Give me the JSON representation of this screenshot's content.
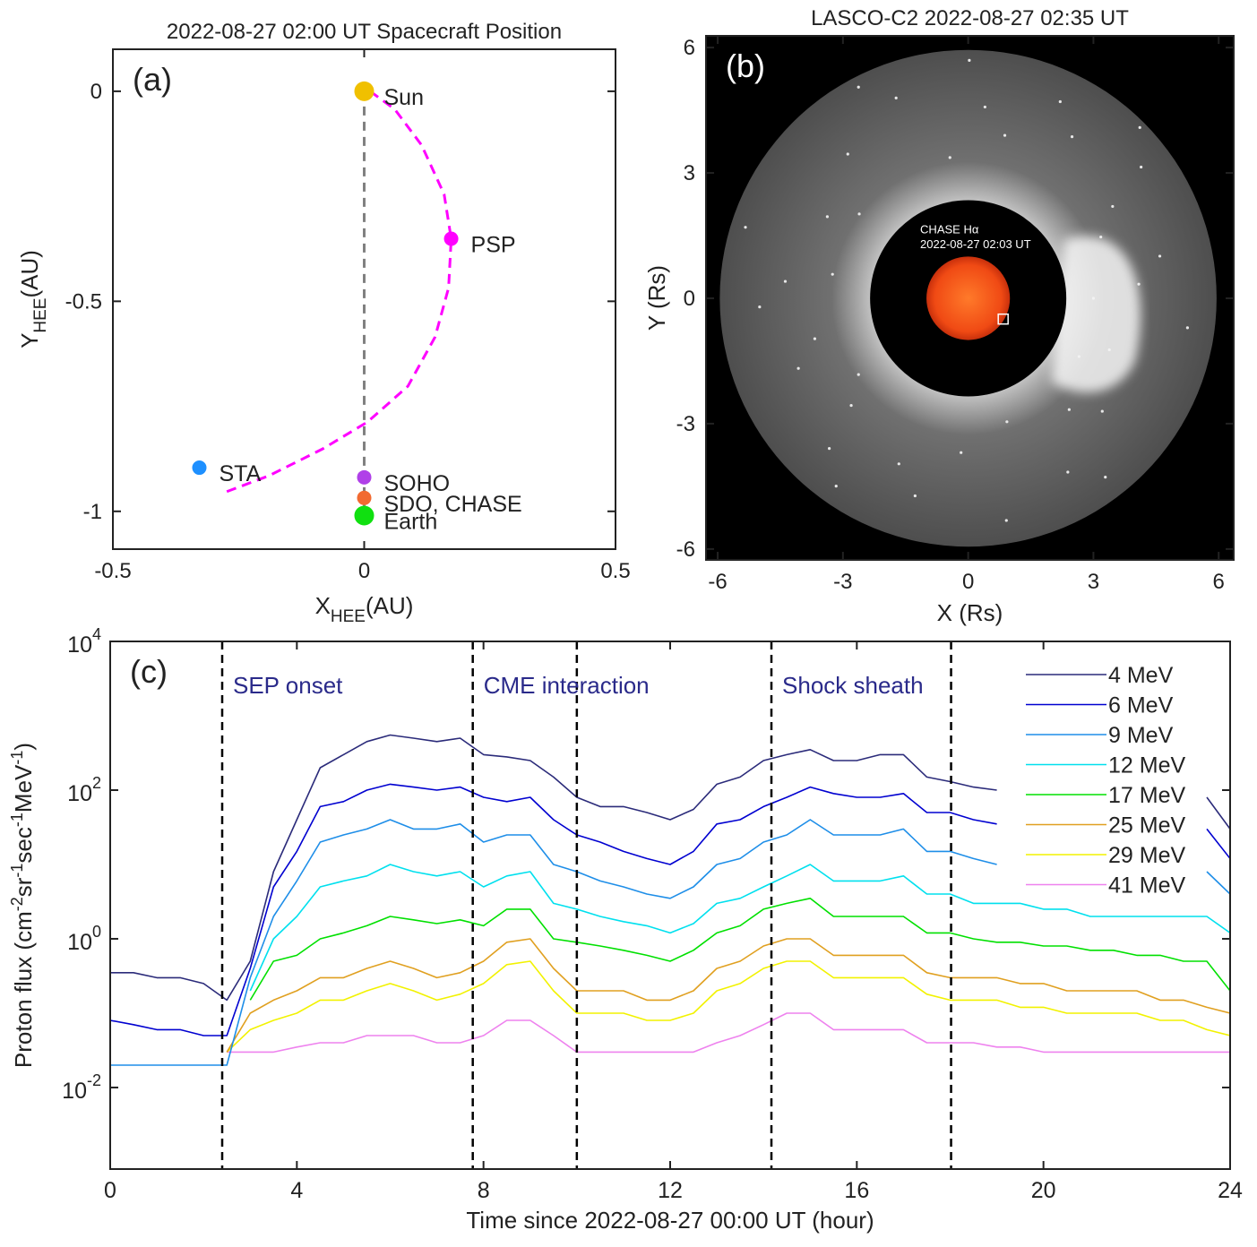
{
  "chart_data": [
    {
      "type": "scatter",
      "title": "2022-08-27 02:00 UT Spacecraft Position",
      "panel_label": "(a)",
      "xlabel": "X",
      "xlabel_sub": "HEE",
      "xlabel_unit": "(AU)",
      "ylabel": "Y",
      "ylabel_sub": "HEE",
      "ylabel_unit": "(AU)",
      "xlim": [
        -0.5,
        0.5
      ],
      "ylim": [
        -1.09,
        0.1
      ],
      "xticks": [
        -0.5,
        0,
        0.5
      ],
      "yticks": [
        -1,
        -0.5,
        0
      ],
      "reference_x": 0,
      "reference_color": "#808080",
      "trajectory": {
        "color": "#ff00ff",
        "x": [
          0.012,
          0.061,
          0.114,
          0.159,
          0.173,
          0.168,
          0.141,
          0.087,
          0.007,
          -0.082,
          -0.189,
          -0.282
        ],
        "y": [
          0,
          -0.043,
          -0.128,
          -0.245,
          -0.351,
          -0.468,
          -0.585,
          -0.702,
          -0.787,
          -0.851,
          -0.915,
          -0.957
        ]
      },
      "points": [
        {
          "name": "Sun",
          "color": "#f0c000",
          "x": 0,
          "y": 0,
          "size": 11
        },
        {
          "name": "PSP",
          "color": "#ff00ff",
          "x": 0.173,
          "y": -0.351,
          "size": 8
        },
        {
          "name": "STA",
          "color": "#1e90ff",
          "x": -0.328,
          "y": -0.896,
          "size": 8
        },
        {
          "name": "SOHO",
          "color": "#b040e8",
          "x": 0,
          "y": -0.919,
          "size": 8
        },
        {
          "name": "SDO, CHASE",
          "color": "#f26a30",
          "x": 0,
          "y": -0.968,
          "size": 8
        },
        {
          "name": "Earth",
          "color": "#10e010",
          "x": 0,
          "y": -1.01,
          "size": 11
        }
      ]
    },
    {
      "type": "image",
      "title": "LASCO-C2 2022-08-27 02:35 UT",
      "panel_label": "(b)",
      "xlabel": "X (Rs)",
      "ylabel": "Y (Rs)",
      "xlim": [
        -6.28,
        6.36
      ],
      "ylim": [
        -6.26,
        6.28
      ],
      "xticks": [
        -6,
        -3,
        0,
        3,
        6
      ],
      "yticks": [
        -6,
        -3,
        0,
        3,
        6
      ],
      "inset_title": "CHASE Hα",
      "inset_time": "2022-08-27 02:03 UT"
    },
    {
      "type": "line",
      "panel_label": "(c)",
      "log_y": true,
      "legend": "upper right",
      "xlabel": "Time since 2022-08-27 00:00 UT (hour)",
      "ylabel_parts": [
        "Proton flux (cm",
        "-2",
        "sr",
        "-1",
        "sec",
        "-1",
        "MeV",
        "-1",
        ")"
      ],
      "xlim": [
        0,
        24
      ],
      "ylim": [
        0.0008,
        10000
      ],
      "xticks": [
        0,
        4,
        8,
        12,
        16,
        20,
        24
      ],
      "yticks": [
        {
          "value": 0.01,
          "label": "10",
          "exponent": "-2"
        },
        {
          "value": 1,
          "label": "10",
          "exponent": "0"
        },
        {
          "value": 100,
          "label": "10",
          "exponent": "2"
        },
        {
          "value": 10000,
          "label": "10",
          "exponent": "4"
        }
      ],
      "event_lines": [
        2.4,
        7.77,
        10,
        14.17,
        18.02
      ],
      "annotations": [
        "SEP onset",
        "CME interaction",
        "Shock sheath"
      ],
      "annotation_color": "#2a2a8a",
      "x": [
        0,
        0.5,
        1,
        1.5,
        2,
        2.5,
        3,
        3.5,
        4,
        4.5,
        5,
        5.5,
        6,
        6.5,
        7,
        7.5,
        8,
        8.5,
        9,
        9.5,
        10,
        10.5,
        11,
        11.5,
        12,
        12.5,
        13,
        13.5,
        14,
        14.5,
        15,
        15.5,
        16,
        16.5,
        17,
        17.5,
        18,
        18.5,
        19,
        19.5,
        20,
        20.5,
        21,
        21.5,
        22,
        22.5,
        23,
        23.5,
        24
      ],
      "series": [
        {
          "name": "4 MeV",
          "color": "#2b2b7a",
          "values": [
            0.35,
            0.35,
            0.3,
            0.3,
            0.25,
            0.15,
            0.5,
            8,
            40,
            200,
            300,
            450,
            550,
            500,
            450,
            500,
            300,
            280,
            250,
            150,
            80,
            60,
            60,
            50,
            40,
            55,
            120,
            150,
            250,
            300,
            350,
            250,
            250,
            300,
            300,
            150,
            130,
            110,
            100,
            null,
            null,
            null,
            null,
            null,
            null,
            null,
            null,
            80,
            30
          ]
        },
        {
          "name": "6 MeV",
          "color": "#0000d0",
          "values": [
            0.08,
            0.07,
            0.06,
            0.06,
            0.05,
            0.05,
            0.4,
            5,
            15,
            60,
            70,
            100,
            120,
            110,
            100,
            110,
            80,
            70,
            80,
            40,
            25,
            20,
            15,
            12,
            10,
            15,
            35,
            40,
            60,
            80,
            110,
            90,
            80,
            80,
            90,
            50,
            50,
            40,
            35,
            null,
            null,
            null,
            null,
            null,
            null,
            null,
            null,
            30,
            12
          ]
        },
        {
          "name": "9 MeV",
          "color": "#1e8ee8",
          "values": [
            0.02,
            0.02,
            0.02,
            0.02,
            0.02,
            0.02,
            0.3,
            2,
            6,
            20,
            25,
            30,
            40,
            30,
            30,
            35,
            20,
            25,
            25,
            10,
            8,
            6,
            5,
            4,
            3.5,
            5,
            10,
            12,
            20,
            25,
            40,
            25,
            25,
            25,
            30,
            15,
            15,
            12,
            10,
            null,
            null,
            null,
            null,
            null,
            null,
            null,
            null,
            8,
            4
          ]
        },
        {
          "name": "12 MeV",
          "color": "#00e0ee",
          "values": [
            null,
            null,
            null,
            null,
            null,
            null,
            0.2,
            1,
            2,
            5,
            6,
            7,
            10,
            8,
            7,
            8,
            5,
            7,
            8,
            3,
            2.5,
            2,
            1.7,
            1.5,
            1.2,
            1.6,
            3,
            3.5,
            5,
            7,
            10,
            6,
            6,
            6,
            7,
            4,
            4,
            3,
            3,
            3,
            2.5,
            2.5,
            2,
            2,
            2,
            2,
            2,
            2,
            1.2
          ]
        },
        {
          "name": "17 MeV",
          "color": "#00e000",
          "values": [
            null,
            null,
            null,
            null,
            null,
            null,
            0.15,
            0.5,
            0.6,
            1,
            1.2,
            1.5,
            2,
            1.8,
            1.6,
            1.8,
            1.5,
            2.5,
            2.5,
            1,
            0.9,
            0.8,
            0.7,
            0.6,
            0.5,
            0.7,
            1.2,
            1.5,
            2.5,
            3,
            3.5,
            2,
            2,
            2,
            2,
            1.2,
            1.2,
            1,
            0.9,
            0.9,
            0.8,
            0.8,
            0.7,
            0.7,
            0.6,
            0.6,
            0.5,
            0.5,
            0.2
          ]
        },
        {
          "name": "25 MeV",
          "color": "#e0a020",
          "values": [
            null,
            null,
            null,
            null,
            null,
            0.03,
            0.1,
            0.15,
            0.2,
            0.3,
            0.3,
            0.4,
            0.5,
            0.4,
            0.3,
            0.35,
            0.5,
            0.9,
            1,
            0.4,
            0.2,
            0.2,
            0.2,
            0.15,
            0.15,
            0.2,
            0.4,
            0.5,
            0.8,
            1,
            1,
            0.6,
            0.6,
            0.6,
            0.6,
            0.35,
            0.3,
            0.3,
            0.3,
            0.25,
            0.25,
            0.2,
            0.2,
            0.2,
            0.2,
            0.15,
            0.15,
            0.12,
            0.1
          ]
        },
        {
          "name": "29 MeV",
          "color": "#f2f200",
          "values": [
            null,
            null,
            null,
            null,
            null,
            0.03,
            0.06,
            0.08,
            0.1,
            0.15,
            0.15,
            0.2,
            0.25,
            0.2,
            0.15,
            0.18,
            0.25,
            0.45,
            0.5,
            0.2,
            0.1,
            0.1,
            0.1,
            0.08,
            0.08,
            0.1,
            0.2,
            0.25,
            0.4,
            0.5,
            0.5,
            0.3,
            0.3,
            0.3,
            0.3,
            0.18,
            0.15,
            0.15,
            0.15,
            0.12,
            0.12,
            0.1,
            0.1,
            0.1,
            0.1,
            0.08,
            0.08,
            0.06,
            0.05
          ]
        },
        {
          "name": "41 MeV",
          "color": "#ee82ee",
          "values": [
            null,
            null,
            null,
            null,
            null,
            0.03,
            0.03,
            0.03,
            0.035,
            0.04,
            0.04,
            0.05,
            0.05,
            0.05,
            0.04,
            0.04,
            0.05,
            0.08,
            0.08,
            0.05,
            0.03,
            0.03,
            0.03,
            0.03,
            0.03,
            0.03,
            0.04,
            0.05,
            0.07,
            0.1,
            0.1,
            0.06,
            0.06,
            0.06,
            0.06,
            0.04,
            0.04,
            0.04,
            0.035,
            0.035,
            0.03,
            0.03,
            0.03,
            0.03,
            0.03,
            0.03,
            0.03,
            0.03,
            0.03
          ]
        }
      ]
    }
  ]
}
